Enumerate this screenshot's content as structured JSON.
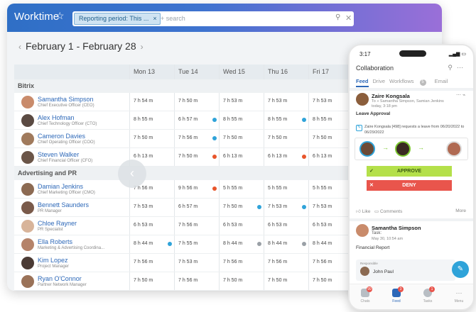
{
  "app": {
    "title": "Worktime"
  },
  "search": {
    "chip": "Reporting period: This ...",
    "chip_close": "×",
    "placeholder": "+ search"
  },
  "period": {
    "label": "February 1 - February 28",
    "prev": "‹",
    "next": "›"
  },
  "columns": [
    "Mon 13",
    "Tue 14",
    "Wed 15",
    "Thu 16",
    "Fri 17"
  ],
  "groups": [
    {
      "name": "Bitrix",
      "people": [
        {
          "name": "Samantha Simpson",
          "title": "Chief Executive Officer (CEO)",
          "avatar": "#c98b6b",
          "cells": [
            "7 h 54 m",
            "7 h 50 m",
            "7 h 53 m",
            "7 h 53 m",
            "7 h 53 m"
          ],
          "dots": [
            "",
            "",
            "",
            "",
            ""
          ]
        },
        {
          "name": "Alex Hofman",
          "title": "Chief Technology Officer (CTO)",
          "avatar": "#5a4a42",
          "cells": [
            "8 h 55 m",
            "6 h 57 m",
            "8 h 55 m",
            "8 h 55 m",
            "8 h 55 m"
          ],
          "dots": [
            "",
            "b",
            "",
            "b",
            ""
          ]
        },
        {
          "name": "Cameron Davies",
          "title": "Chief Operating Officer (COO)",
          "avatar": "#a07a5c",
          "cells": [
            "7 h 50 m",
            "7 h 56 m",
            "7 h 50 m",
            "7 h 50 m",
            "7 h 50 m"
          ],
          "dots": [
            "",
            "b",
            "",
            "",
            ""
          ]
        },
        {
          "name": "Steven Walker",
          "title": "Chief Financial Officer (CFO)",
          "avatar": "#6b5548",
          "cells": [
            "6 h 13 m",
            "7 h 50 m",
            "6 h 13 m",
            "6 h 13 m",
            "6 h 13 m"
          ],
          "dots": [
            "",
            "r",
            "",
            "r",
            ""
          ]
        }
      ]
    },
    {
      "name": "Advertising and PR",
      "people": [
        {
          "name": "Damian Jenkins",
          "title": "Chief Marketing Officer (CMO)",
          "avatar": "#8c6a52",
          "cells": [
            "7 h 56 m",
            "9 h 56 m",
            "5 h 55 m",
            "5 h 55 m",
            "5 h 55 m"
          ],
          "dots": [
            "",
            "r",
            "",
            "",
            ""
          ]
        },
        {
          "name": "Bennett Saunders",
          "title": "PR Manager",
          "avatar": "#7a5a4a",
          "cells": [
            "7 h 53 m",
            "6 h 57 m",
            "7 h 50 m",
            "7 h 53 m",
            "7 h 53 m"
          ],
          "dots": [
            "",
            "",
            "b",
            "b",
            ""
          ]
        },
        {
          "name": "Chloe Rayner",
          "title": "PR Specialist",
          "avatar": "#d8b49a",
          "cells": [
            "6 h 53 m",
            "7 h 56 m",
            "6 h 53 m",
            "6 h 53 m",
            "6 h 53 m"
          ],
          "dots": [
            "",
            "",
            "",
            "",
            ""
          ]
        },
        {
          "name": "Ella Roberts",
          "title": "Marketing & Advertising Coordina...",
          "avatar": "#b5836a",
          "cells": [
            "8 h 44 m",
            "7 h 55 m",
            "8 h 44 m",
            "8 h 44 m",
            "8 h 44 m"
          ],
          "dots": [
            "b",
            "",
            "g",
            "g",
            ""
          ]
        },
        {
          "name": "Kim Lopez",
          "title": "Project Manager",
          "avatar": "#4a3a34",
          "cells": [
            "7 h 56 m",
            "7 h 53 m",
            "7 h 56 m",
            "7 h 56 m",
            "7 h 56 m"
          ],
          "dots": [
            "",
            "",
            "",
            "",
            ""
          ]
        },
        {
          "name": "Ryan O'Connor",
          "title": "Partner Network Manager",
          "avatar": "#9a7258",
          "cells": [
            "7 h 50 m",
            "7 h 56 m",
            "7 h 50 m",
            "7 h 50 m",
            "7 h 50 m"
          ],
          "dots": [
            "",
            "",
            "",
            "",
            ""
          ]
        }
      ]
    }
  ],
  "phone": {
    "time": "3:17",
    "title": "Collaboration",
    "tabs": [
      "Feed",
      "Drive",
      "Workflows",
      "Email"
    ],
    "workflow_badge": "5",
    "post1": {
      "author": "Zaire Kongsala",
      "to": "To » Samantha Simpson, Samian Jenkins",
      "time": "today, 3:18 pm",
      "heading": "Leave Approval",
      "text": "Zaire Kongsala [498] requests a leave from 06/20/2022 to 06/29/2022",
      "approve": "APPROVE",
      "deny": "DENY",
      "like": "Like",
      "comments": "Comments",
      "more": "More"
    },
    "post2": {
      "author": "Samantha Simpson",
      "label": "Task:",
      "time": "May 30, 10:54 am",
      "heading": "Financial Report",
      "resp_label": "Responsible",
      "resp_name": "John Paul"
    },
    "nav": [
      {
        "label": "Chats",
        "badge": "99"
      },
      {
        "label": "Feed",
        "badge": "3"
      },
      {
        "label": "Tasks",
        "badge": "1"
      },
      {
        "label": "Menu",
        "badge": ""
      }
    ]
  }
}
